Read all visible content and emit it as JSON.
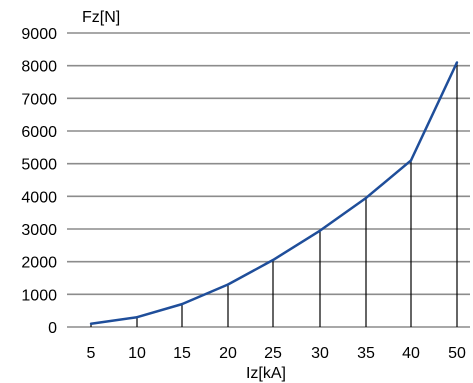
{
  "chart_data": {
    "type": "line",
    "title": "",
    "xlabel": "Iz[kA]",
    "ylabel": "Fz[N]",
    "x": [
      5,
      10,
      15,
      20,
      25,
      30,
      35,
      40,
      50
    ],
    "series": [
      {
        "values": [
          100,
          300,
          700,
          1300,
          2050,
          2950,
          3950,
          5100,
          8100
        ]
      }
    ],
    "y_ticks": [
      0,
      1000,
      2000,
      3000,
      4000,
      5000,
      6000,
      7000,
      8000,
      9000
    ],
    "x_tick_labels": [
      "5",
      "10",
      "15",
      "20",
      "25",
      "30",
      "35",
      "40",
      "50"
    ],
    "ylim": [
      0,
      9000
    ],
    "grid": "horizontal",
    "drop_lines": true,
    "colors": {
      "line": "#1f4e9a",
      "grid": "#8c8c8c",
      "drop": "#000000"
    }
  }
}
